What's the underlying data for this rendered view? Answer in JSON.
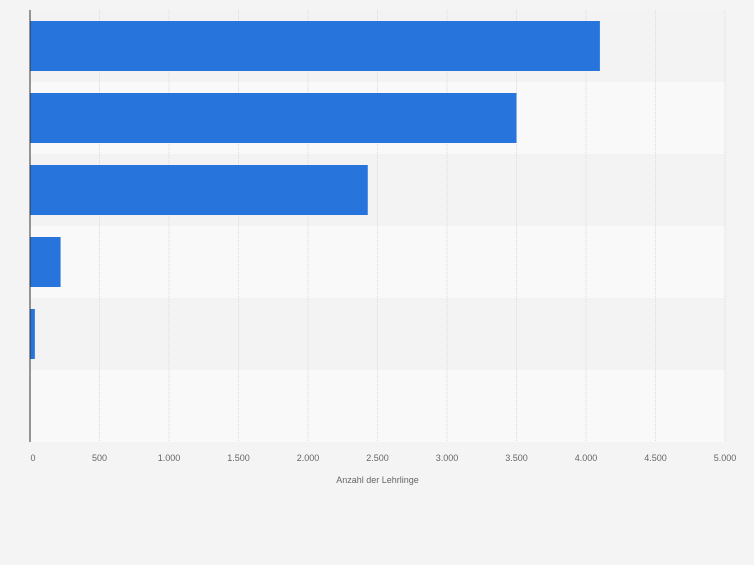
{
  "colors": {
    "background": "#f4f4f4",
    "band_light": "#f9f9f9",
    "band_dark": "#f3f3f3",
    "bar": "#2775dc",
    "grid": "#dcdcdc",
    "axis": "#333333",
    "tick_text": "#666666"
  },
  "chart_data": {
    "type": "bar",
    "orientation": "horizontal",
    "categories": [
      "",
      "",
      "",
      "",
      "",
      ""
    ],
    "values": [
      4100,
      3500,
      2430,
      220,
      35,
      0
    ],
    "xlabel": "Anzahl der Lehrlinge",
    "ylabel": "",
    "xlim": [
      0,
      5000
    ],
    "xticks": [
      0,
      500,
      1000,
      1500,
      2000,
      2500,
      3000,
      3500,
      4000,
      4500,
      5000
    ],
    "xtick_labels": [
      "0",
      "500",
      "1.000",
      "1.500",
      "2.000",
      "2.500",
      "3.000",
      "3.500",
      "4.000",
      "4.500",
      "5.000"
    ],
    "grid": true,
    "legend": "none"
  }
}
